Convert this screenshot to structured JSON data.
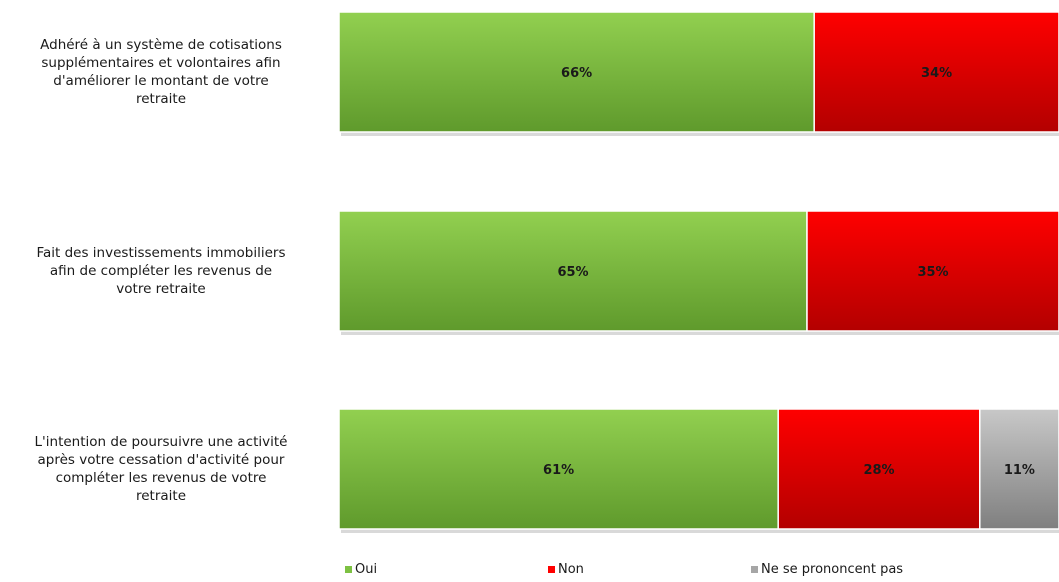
{
  "chart_data": {
    "type": "bar",
    "orientation": "horizontal",
    "stacked": true,
    "percent_stacked": true,
    "categories": [
      "Adhéré à un système de cotisations supplémentaires et volontaires afin d'améliorer le montant de votre retraite",
      "Fait des investissements immobiliers afin de compléter les revenus de votre retraite",
      "L'intention de poursuivre une activité après votre cessation d'activité pour compléter les revenus de votre retraite"
    ],
    "category_lines": [
      [
        "Adhéré à un système de cotisations",
        "supplémentaires et volontaires afin",
        "d'améliorer le montant de votre",
        "retraite"
      ],
      [
        "Fait des investissements immobiliers",
        "afin de compléter les revenus de",
        "votre retraite"
      ],
      [
        "L'intention de poursuivre une activité",
        "après votre cessation d'activité pour",
        "compléter les revenus de votre",
        "retraite"
      ]
    ],
    "series": [
      {
        "name": "Oui",
        "values": [
          66,
          65,
          61
        ],
        "labels": [
          "66%",
          "65%",
          "61%"
        ],
        "color": "#7dc142"
      },
      {
        "name": "Non",
        "values": [
          34,
          35,
          28
        ],
        "labels": [
          "34%",
          "35%",
          "28%"
        ],
        "color": "#ff0000"
      },
      {
        "name": "Ne se prononcent pas",
        "values": [
          0,
          0,
          11
        ],
        "labels": [
          "",
          "",
          "11%"
        ],
        "color": "#a6a6a6"
      }
    ],
    "xlim": [
      0,
      100
    ],
    "legend_position": "bottom",
    "grid": false
  }
}
